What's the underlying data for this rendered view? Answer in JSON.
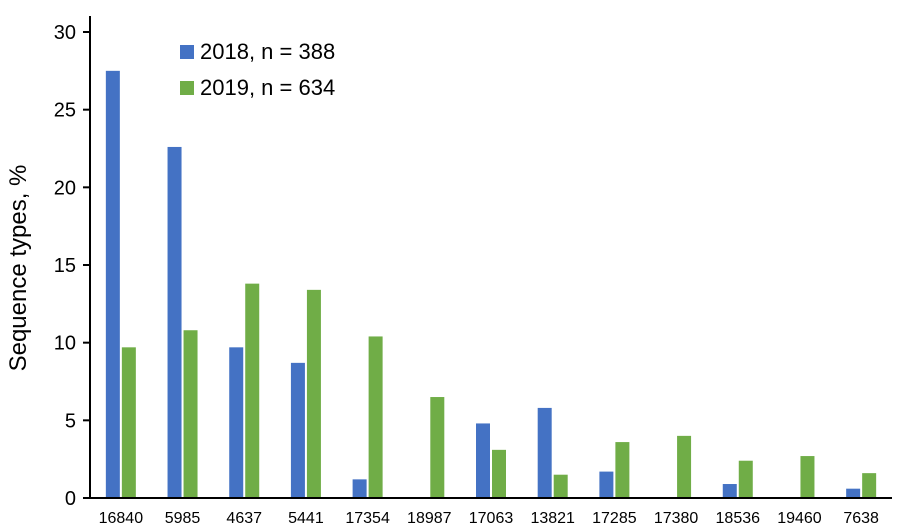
{
  "chart_data": {
    "type": "bar",
    "title": "",
    "xlabel": "",
    "ylabel": "Sequence types, %",
    "ylim": [
      0,
      30
    ],
    "yticks": [
      0,
      5,
      10,
      15,
      20,
      25,
      30
    ],
    "grid": false,
    "legend_position": "top-left",
    "categories": [
      "16840",
      "5985",
      "4637",
      "5441",
      "17354",
      "18987",
      "17063",
      "13821",
      "17285",
      "17380",
      "18536",
      "19460",
      "7638"
    ],
    "series": [
      {
        "name": "2018, n = 388",
        "color": "#4472C4",
        "values": [
          27.5,
          22.6,
          9.7,
          8.7,
          1.2,
          0,
          4.8,
          5.8,
          1.7,
          0,
          0.9,
          0,
          0.6
        ]
      },
      {
        "name": "2019, n = 634",
        "color": "#70AD47",
        "values": [
          9.7,
          10.8,
          13.8,
          13.4,
          10.4,
          6.5,
          3.1,
          1.5,
          3.6,
          4.0,
          2.4,
          2.7,
          1.6
        ]
      }
    ]
  }
}
